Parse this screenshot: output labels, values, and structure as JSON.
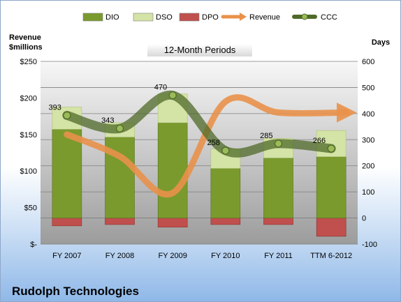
{
  "company": "Rudolph Technologies",
  "chart_data": {
    "type": "bar",
    "title": "12-Month Periods",
    "left_axis_label": [
      "Revenue",
      "$millions"
    ],
    "right_axis_label": "Days",
    "categories": [
      "FY 2007",
      "FY 2008",
      "FY 2009",
      "FY 2010",
      "FY 2011",
      "TTM 6-2012"
    ],
    "left_ticks": [
      "$250",
      "$200",
      "$150",
      "$100",
      "$50",
      "$-"
    ],
    "left_ylim": [
      0,
      250
    ],
    "right_ticks": [
      "600",
      "500",
      "400",
      "300",
      "200",
      "100",
      "0",
      "-100"
    ],
    "right_ylim": [
      -100,
      600
    ],
    "grid": true,
    "legend_position": "top",
    "series": [
      {
        "name": "DIO",
        "kind": "stacked-bar",
        "axis": "days",
        "color": "#7a9a2e",
        "values": [
          340,
          310,
          365,
          190,
          230,
          235
        ]
      },
      {
        "name": "DSO",
        "kind": "stacked-bar",
        "axis": "days",
        "color": "#d4e3a6",
        "values": [
          85,
          55,
          110,
          75,
          75,
          100
        ]
      },
      {
        "name": "DPO",
        "kind": "stacked-bar-negative",
        "axis": "days",
        "color": "#c0504d",
        "values": [
          -30,
          -25,
          -35,
          -25,
          -25,
          -70
        ]
      },
      {
        "name": "Revenue",
        "kind": "line",
        "axis": "revenue",
        "color": "#e9914a",
        "values": [
          150,
          120,
          70,
          195,
          180,
          180
        ]
      },
      {
        "name": "CCC",
        "kind": "line",
        "axis": "days",
        "color": "#4f6a28",
        "values": [
          393,
          343,
          470,
          258,
          285,
          266
        ]
      }
    ],
    "data_labels": [
      "393",
      "343",
      "470",
      "258",
      "285",
      "266"
    ]
  }
}
